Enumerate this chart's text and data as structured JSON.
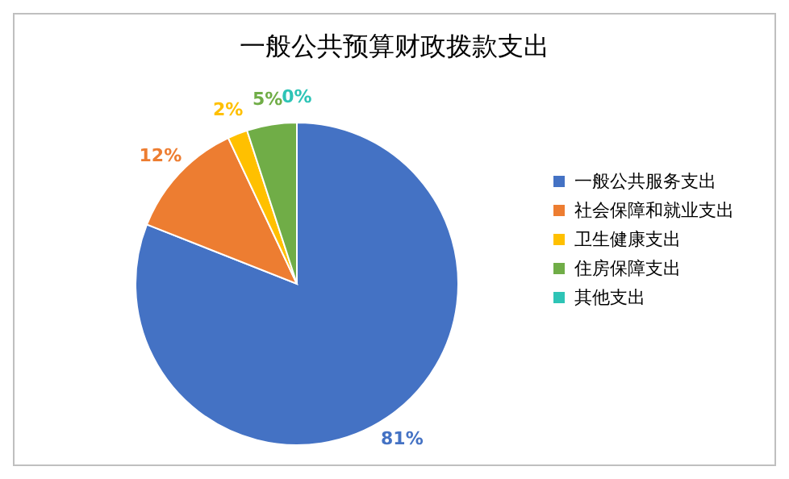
{
  "chart_data": {
    "type": "pie",
    "title": "一般公共预算财政拨款支出",
    "categories": [
      "一般公共服务支出",
      "社会保障和就业支出",
      "卫生健康支出",
      "住房保障支出",
      "其他支出"
    ],
    "values": [
      81,
      12,
      2,
      5,
      0
    ],
    "colors": [
      "#4472c4",
      "#ed7d31",
      "#ffc000",
      "#70ad47",
      "#2ec4b6"
    ],
    "value_labels": [
      "81%",
      "12%",
      "2%",
      "5%",
      "0%"
    ],
    "legend": "right"
  }
}
